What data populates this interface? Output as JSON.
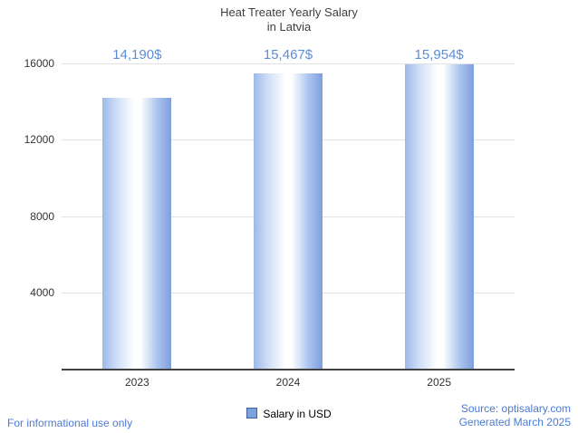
{
  "title": {
    "line1": "Heat Treater Yearly Salary",
    "line2": "in Latvia"
  },
  "legend": {
    "label": "Salary in USD",
    "swatch_color": "#7aa3e0"
  },
  "footer": {
    "left": "For informational use only",
    "source": "Source: optisalary.com",
    "generated": "Generated March 2025"
  },
  "colors": {
    "value_label": "#5b8ed6",
    "footer_text": "#4b7bd4",
    "bar_edge_blue": "#7e9fdd",
    "bar_light_blue": "#9db9ea",
    "gridline": "#e3e3e3",
    "axis": "#424242"
  },
  "chart_data": {
    "type": "bar",
    "title": "Heat Treater Yearly Salary in Latvia",
    "categories": [
      "2023",
      "2024",
      "2025"
    ],
    "values": [
      14190,
      15467,
      15954
    ],
    "value_labels": [
      "14,190$",
      "15,467$",
      "15,954$"
    ],
    "series_name": "Salary in USD",
    "xlabel": "",
    "ylabel": "",
    "ylim": [
      0,
      16000
    ],
    "yticks": [
      4000,
      8000,
      12000,
      16000
    ],
    "grid": "horizontal",
    "legend_position": "bottom"
  }
}
